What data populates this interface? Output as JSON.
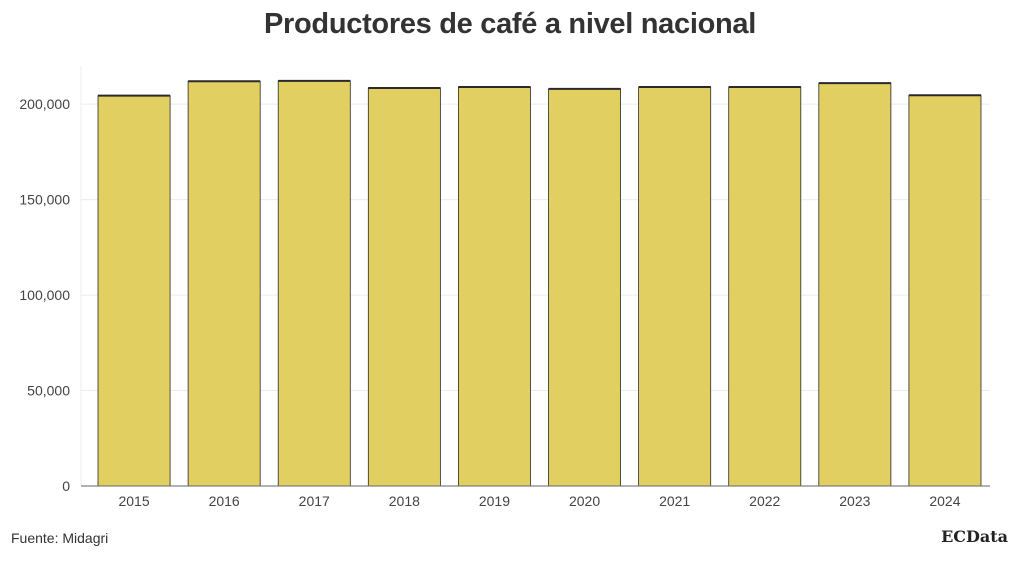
{
  "title": "Productores de café a nivel nacional",
  "source": "Fuente: Midagri",
  "brand": "ECData",
  "colors": {
    "bar_fill": "#e2cf62",
    "bar_stroke": "#2a2a2a",
    "grid": "#ececec",
    "axis": "#666666"
  },
  "chart_data": {
    "type": "bar",
    "title": "Productores de café a nivel nacional",
    "xlabel": "",
    "ylabel": "",
    "categories": [
      "2015",
      "2016",
      "2017",
      "2018",
      "2019",
      "2020",
      "2021",
      "2022",
      "2023",
      "2024"
    ],
    "values": [
      204500,
      212000,
      212200,
      208500,
      209000,
      208000,
      209000,
      209000,
      211000,
      204700
    ],
    "ylim": [
      0,
      220000
    ],
    "yticks": [
      0,
      50000,
      100000,
      150000,
      200000
    ],
    "ytick_labels": [
      "0",
      "50,000",
      "100,000",
      "150,000",
      "200,000"
    ],
    "grid": true,
    "legend": "none"
  }
}
